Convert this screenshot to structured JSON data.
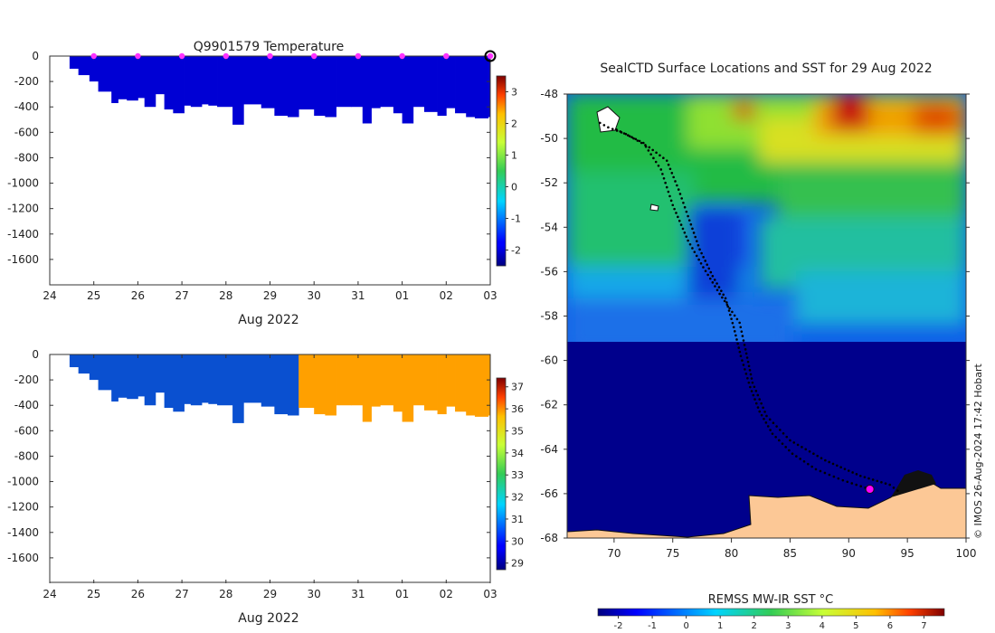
{
  "chart_data": [
    {
      "type": "heatmap",
      "title": "Q9901579  Temperature",
      "xlabel": "Aug 2022",
      "ylabel": "",
      "x_tick_labels": [
        "24",
        "25",
        "26",
        "27",
        "28",
        "29",
        "30",
        "31",
        "01",
        "02",
        "03"
      ],
      "x_range_days": [
        24,
        34
      ],
      "y_tick_labels": [
        "0",
        "-200",
        "-400",
        "-600",
        "-800",
        "-1000",
        "-1200",
        "-1400",
        "-1600"
      ],
      "y_ticks": [
        0,
        -200,
        -400,
        -600,
        -800,
        -1000,
        -1200,
        -1400,
        -1600
      ],
      "ylim": [
        -1800,
        0
      ],
      "profile_marker_days": [
        25,
        26,
        27,
        28,
        29,
        30,
        31,
        32,
        33
      ],
      "latest_profile_day": 34,
      "profile_depth": {
        "x": [
          24.45,
          24.65,
          24.9,
          25.1,
          25.4,
          25.55,
          25.75,
          26.0,
          26.15,
          26.4,
          26.6,
          26.8,
          27.05,
          27.2,
          27.45,
          27.6,
          27.8,
          28.15,
          28.4,
          28.8,
          29.1,
          29.4,
          29.65,
          30.0,
          30.25,
          30.5,
          30.85,
          31.1,
          31.3,
          31.5,
          31.8,
          32.0,
          32.25,
          32.5,
          32.8,
          33.0,
          33.2,
          33.45,
          33.65,
          33.95
        ],
        "depth": [
          -100,
          -150,
          -200,
          -280,
          -370,
          -340,
          -350,
          -330,
          -400,
          -300,
          -420,
          -450,
          -390,
          -400,
          -380,
          -390,
          -400,
          -540,
          -380,
          -410,
          -470,
          -480,
          -420,
          -470,
          -480,
          -400,
          -400,
          -530,
          -410,
          -400,
          -450,
          -530,
          -400,
          -440,
          -470,
          -410,
          -450,
          -480,
          -490,
          -480
        ]
      },
      "colorbar": {
        "min": -2.5,
        "max": 3.5,
        "tick_labels": [
          "-2",
          "-1",
          "0",
          "1",
          "2",
          "3"
        ],
        "ticks": [
          -2,
          -1,
          0,
          1,
          2,
          3
        ],
        "colormap": "jet"
      },
      "fill_value": -2.0
    },
    {
      "type": "heatmap",
      "title": "",
      "xlabel": "Aug 2022",
      "ylabel": "",
      "x_tick_labels": [
        "24",
        "25",
        "26",
        "27",
        "28",
        "29",
        "30",
        "31",
        "01",
        "02",
        "03"
      ],
      "y_tick_labels": [
        "0",
        "-200",
        "-400",
        "-600",
        "-800",
        "-1000",
        "-1200",
        "-1400",
        "-1600"
      ],
      "ylim": [
        -1800,
        0
      ],
      "split_day": 29.5,
      "value_before_split": 30.0,
      "value_after_split": 35.5,
      "colorbar": {
        "min": 28.7,
        "max": 37.4,
        "tick_labels": [
          "29",
          "30",
          "31",
          "32",
          "33",
          "34",
          "35",
          "36",
          "37"
        ],
        "ticks": [
          29,
          30,
          31,
          32,
          33,
          34,
          35,
          36,
          37
        ],
        "colormap": "jet"
      }
    },
    {
      "type": "map",
      "title": "SealCTD Surface Locations and SST for 29 Aug 2022",
      "x_tick_labels": [
        "70",
        "75",
        "80",
        "85",
        "90",
        "95",
        "100"
      ],
      "x_ticks": [
        70,
        75,
        80,
        85,
        90,
        95,
        100
      ],
      "xlim": [
        66,
        100
      ],
      "y_tick_labels": [
        "-48",
        "-50",
        "-52",
        "-54",
        "-56",
        "-58",
        "-60",
        "-62",
        "-64",
        "-66",
        "-68"
      ],
      "y_ticks": [
        -48,
        -50,
        -52,
        -54,
        -56,
        -58,
        -60,
        -62,
        -64,
        -66,
        -68
      ],
      "ylim": [
        -68,
        -48
      ],
      "colorbar_label": "REMSS MW-IR SST °C",
      "colorbar": {
        "min": -2.6,
        "max": 7.6,
        "tick_labels": [
          "-2",
          "-1",
          "0",
          "1",
          "2",
          "3",
          "4",
          "5",
          "6",
          "7"
        ],
        "ticks": [
          -2,
          -1,
          0,
          1,
          2,
          3,
          4,
          5,
          6,
          7
        ],
        "colormap": "jet"
      },
      "latest_position": {
        "lon": 91.8,
        "lat": -65.8
      },
      "track_lon_lat": [
        [
          68.8,
          -49.3
        ],
        [
          69.5,
          -49.5
        ],
        [
          71,
          -49.8
        ],
        [
          73,
          -50.4
        ],
        [
          74.5,
          -51
        ],
        [
          75.5,
          -52.3
        ],
        [
          76.3,
          -53.5
        ],
        [
          77.3,
          -55
        ],
        [
          78.4,
          -56.2
        ],
        [
          79.5,
          -57.2
        ],
        [
          80.2,
          -58.5
        ],
        [
          80.8,
          -59.8
        ],
        [
          81.6,
          -61.2
        ],
        [
          82.4,
          -62.3
        ],
        [
          83.5,
          -63.3
        ],
        [
          85.2,
          -64.2
        ],
        [
          87.2,
          -64.9
        ],
        [
          89.5,
          -65.4
        ],
        [
          91.8,
          -65.8
        ]
      ],
      "track2_lon_lat": [
        [
          70.2,
          -49.6
        ],
        [
          72.5,
          -50.2
        ],
        [
          74,
          -51.4
        ],
        [
          75,
          -53
        ],
        [
          76.3,
          -54.6
        ],
        [
          77.6,
          -55.8
        ],
        [
          79,
          -57
        ],
        [
          80.7,
          -58.3
        ],
        [
          81.2,
          -59.5
        ],
        [
          81.8,
          -61
        ],
        [
          83,
          -62.5
        ],
        [
          85,
          -63.6
        ],
        [
          88,
          -64.5
        ],
        [
          91,
          -65.2
        ],
        [
          93.5,
          -65.6
        ],
        [
          94.5,
          -66
        ]
      ]
    }
  ],
  "credit": "© IMOS 26-Aug-2024 17:42 Hobart"
}
